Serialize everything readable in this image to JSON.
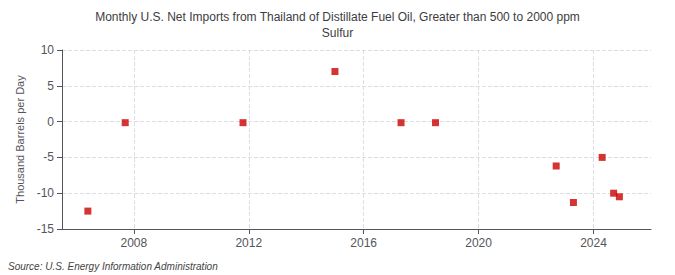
{
  "chart_data": {
    "type": "scatter",
    "title": "Monthly U.S. Net Imports from Thailand of Distillate Fuel Oil, Greater than 500 to 2000 ppm\nSulfur",
    "ylabel": "Thousand Barrels per Day",
    "annotation": "Source: U.S. Energy Information Administration",
    "x": [
      2006.4,
      2007.7,
      2011.8,
      2015.0,
      2017.3,
      2018.5,
      2022.7,
      2023.3,
      2024.3,
      2024.7,
      2024.9
    ],
    "values": [
      -12.5,
      -0.15,
      -0.15,
      7.0,
      -0.15,
      -0.15,
      -6.2,
      -11.3,
      -5.0,
      -10.0,
      -10.5
    ],
    "color": "#cc0000",
    "marker": "square",
    "xlim": [
      2005.5,
      2026.0
    ],
    "ylim": [
      -15,
      10
    ],
    "xticks": [
      2008,
      2012,
      2016,
      2020,
      2024
    ],
    "yticks": [
      -15,
      -10,
      -5,
      0,
      5,
      10
    ],
    "grid": true
  }
}
